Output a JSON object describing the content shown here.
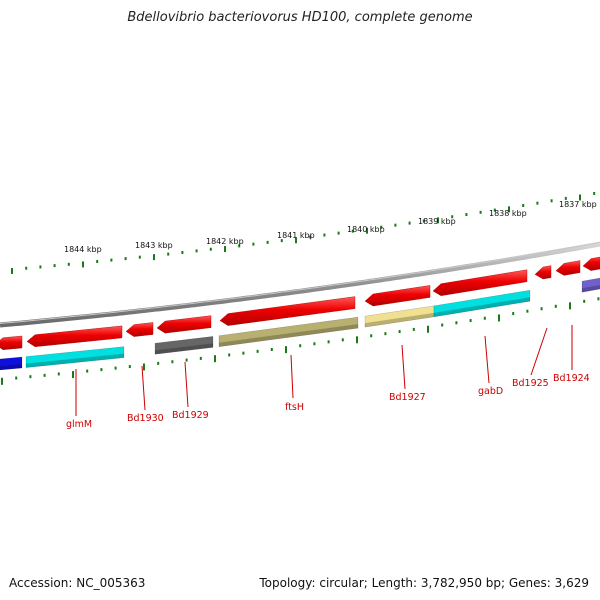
{
  "title": "Bdellovibrio bacteriovorus HD100, complete genome",
  "footer": {
    "accession": "Accession: NC_005363",
    "summary": "Topology: circular; Length: 3,782,950 bp; Genes: 3,629"
  },
  "ruler": [
    "1844 kbp",
    "1843 kbp",
    "1842 kbp",
    "1841 kbp",
    "1840 kbp",
    "1839 kbp",
    "1838 kbp",
    "1837 kbp"
  ],
  "gene_labels": [
    "glmM",
    "Bd1930",
    "Bd1929",
    "ftsH",
    "Bd1927",
    "gabD",
    "Bd1925",
    "Bd1924"
  ],
  "colors": {
    "gene_arrow": "#ee0000",
    "backbone": "#888888",
    "tick": "#1a7a1a",
    "label": "#cc0000",
    "cog_blue": "#1010dd",
    "cog_cyan": "#00e0e0",
    "cog_teal": "#20b8b8",
    "cog_gray": "#666666",
    "cog_olive": "#b8b070",
    "cog_yellow": "#f0e090",
    "cog_purple": "#7060cc"
  }
}
